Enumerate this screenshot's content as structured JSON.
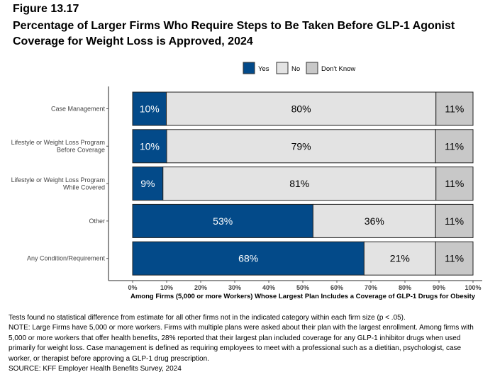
{
  "figure_label": "Figure 13.17",
  "title": "Percentage of Larger Firms Who Require Steps to Be Taken Before GLP-1 Agonist Coverage for Weight Loss is Approved, 2024",
  "chart_data": {
    "type": "bar",
    "orientation": "horizontal",
    "stacked": true,
    "categories": [
      "Case Management",
      "Lifestyle or Weight Loss Program Before Coverage",
      "Lifestyle or Weight Loss Program While Covered",
      "Other",
      "Any Condition/Requirement"
    ],
    "category_lines": [
      [
        "Case Management"
      ],
      [
        "Lifestyle or Weight Loss Program",
        "Before Coverage"
      ],
      [
        "Lifestyle or Weight Loss Program",
        "While Covered"
      ],
      [
        "Other"
      ],
      [
        "Any Condition/Requirement"
      ]
    ],
    "series": [
      {
        "name": "Yes",
        "color": "#034a89",
        "label_color": "#ffffff",
        "values": [
          10,
          10,
          9,
          53,
          68
        ]
      },
      {
        "name": "No",
        "color": "#e3e3e3",
        "label_color": "#000000",
        "values": [
          80,
          79,
          81,
          36,
          21
        ]
      },
      {
        "name": "Don't Know",
        "color": "#c8c8c8",
        "label_color": "#000000",
        "values": [
          11,
          11,
          11,
          11,
          11
        ]
      }
    ],
    "data_labels": [
      [
        "10%",
        "80%",
        "11%"
      ],
      [
        "10%",
        "79%",
        "11%"
      ],
      [
        "9%",
        "81%",
        "11%"
      ],
      [
        "53%",
        "36%",
        "11%"
      ],
      [
        "68%",
        "21%",
        "11%"
      ]
    ],
    "xlabel": "Among Firms (5,000 or more Workers) Whose Largest Plan Includes a Coverage of GLP-1 Drugs for Obesity",
    "xlim": [
      0,
      100
    ],
    "xticks": [
      "0%",
      "10%",
      "20%",
      "30%",
      "40%",
      "50%",
      "60%",
      "70%",
      "80%",
      "90%",
      "100%"
    ],
    "legend_position": "top",
    "grid": false
  },
  "notes": [
    "Tests found no statistical difference from estimate for all other firms not in the indicated category within each firm size (p < .05).",
    "NOTE: Large Firms have 5,000 or more workers.  Firms with multiple plans were asked about their plan with the largest enrollment.  Among firms with",
    "5,000 or more workers that offer health benefits, 28% reported that their largest plan included coverage for any GLP-1 inhibitor drugs when used",
    "primarily for weight loss. Case management is defined as requiring employees to meet with a professional such as a dietitian, psychologist, case",
    "worker, or therapist before approving a GLP-1 drug prescription.",
    "SOURCE: KFF Employer Health Benefits Survey, 2024"
  ]
}
